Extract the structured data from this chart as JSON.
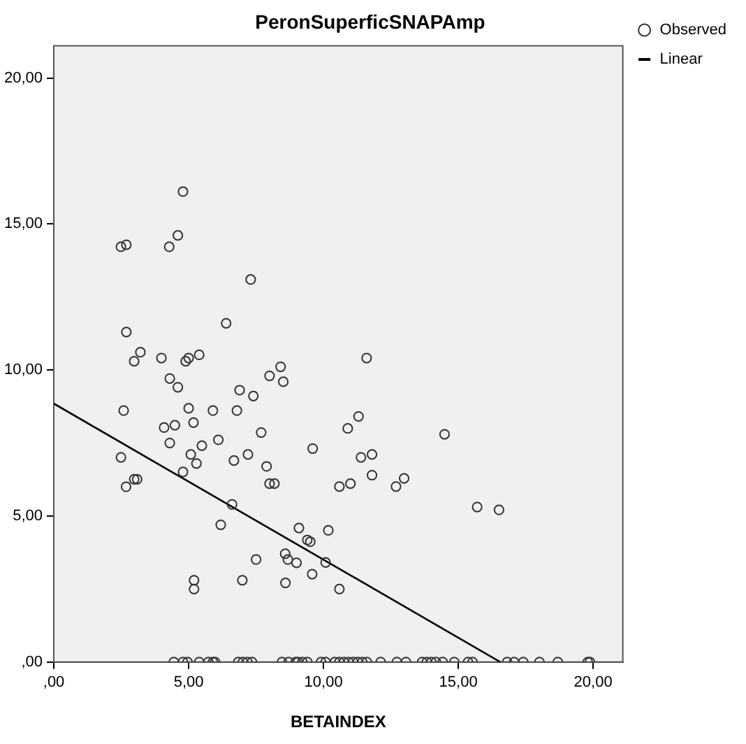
{
  "chart_data": {
    "type": "scatter",
    "title": "PeronSuperficSNAPAmp",
    "xlabel": "BETAINDEX",
    "xlim": [
      0,
      21.1
    ],
    "ylim": [
      0,
      21.1
    ],
    "xticks": [
      {
        "value": 0,
        "label": ",00"
      },
      {
        "value": 5,
        "label": "5,00"
      },
      {
        "value": 10,
        "label": "10,00"
      },
      {
        "value": 15,
        "label": "15,00"
      },
      {
        "value": 20,
        "label": "20,00"
      }
    ],
    "yticks": [
      {
        "value": 0,
        "label": ",00"
      },
      {
        "value": 5,
        "label": "5,00"
      },
      {
        "value": 10,
        "label": "10,00"
      },
      {
        "value": 15,
        "label": "15,00"
      },
      {
        "value": 20,
        "label": "20,00"
      }
    ],
    "grid": false,
    "legend": "top right",
    "series": [
      {
        "name": "Observed",
        "marker": "circle",
        "color": "#333333",
        "x": [
          4.79,
          2.49,
          2.69,
          4.6,
          4.28,
          7.3,
          6.39,
          2.69,
          3.21,
          2.98,
          3.99,
          4.89,
          5.0,
          5.39,
          8.41,
          8.0,
          8.51,
          4.3,
          4.6,
          6.89,
          7.4,
          2.59,
          5.0,
          5.9,
          6.79,
          4.09,
          4.49,
          5.18,
          7.69,
          9.6,
          4.3,
          5.49,
          6.1,
          5.08,
          5.29,
          6.68,
          7.2,
          7.89,
          8.0,
          8.18,
          2.49,
          2.68,
          2.98,
          3.09,
          4.79,
          6.61,
          6.19,
          9.09,
          9.4,
          9.51,
          8.58,
          8.68,
          9.0,
          7.5,
          9.58,
          6.99,
          8.59,
          5.2,
          5.2,
          11.6,
          11.3,
          10.9,
          14.49,
          11.39,
          11.8,
          11.8,
          10.59,
          11.0,
          12.69,
          12.99,
          15.7,
          16.51,
          10.18,
          10.08,
          10.59,
          4.45,
          4.79,
          4.96,
          5.39,
          5.73,
          5.9,
          5.98,
          6.84,
          7.01,
          7.18,
          7.35,
          8.46,
          8.71,
          8.97,
          9.05,
          9.22,
          9.4,
          9.91,
          10.08,
          10.42,
          10.59,
          10.76,
          10.93,
          11.1,
          11.27,
          11.44,
          11.61,
          12.12,
          12.72,
          13.06,
          13.66,
          13.83,
          14.0,
          14.17,
          14.42,
          14.85,
          15.36,
          15.53,
          16.81,
          17.07,
          17.41,
          18.01,
          18.69,
          19.8,
          19.88
        ],
        "values": [
          16.11,
          14.22,
          14.29,
          14.61,
          14.22,
          13.1,
          11.6,
          11.3,
          10.61,
          10.3,
          10.41,
          10.3,
          10.41,
          10.52,
          10.11,
          9.8,
          9.6,
          9.71,
          9.41,
          9.31,
          9.11,
          8.61,
          8.69,
          8.61,
          8.61,
          8.03,
          8.11,
          8.2,
          7.86,
          7.31,
          7.5,
          7.41,
          7.61,
          7.11,
          6.8,
          6.9,
          7.11,
          6.7,
          6.11,
          6.11,
          7.01,
          6.0,
          6.26,
          6.26,
          6.51,
          5.4,
          4.7,
          4.59,
          4.18,
          4.12,
          3.71,
          3.51,
          3.4,
          3.51,
          3.01,
          2.8,
          2.71,
          2.8,
          2.5,
          10.41,
          8.41,
          8.0,
          7.8,
          7.01,
          7.11,
          6.4,
          6.01,
          6.11,
          6.01,
          6.29,
          5.31,
          5.21,
          4.51,
          3.41,
          2.5,
          0,
          0,
          0,
          0,
          0,
          0,
          0,
          0,
          0,
          0,
          0,
          0,
          0,
          0,
          0,
          0,
          0,
          0,
          0,
          0,
          0,
          0,
          0,
          0,
          0,
          0,
          0,
          0,
          0,
          0,
          0,
          0,
          0,
          0,
          0,
          0,
          0,
          0,
          0,
          0,
          0,
          0,
          0,
          0,
          0
        ]
      },
      {
        "name": "Linear",
        "type": "line",
        "marker": "none",
        "color": "#000000",
        "x": [
          0,
          16.56
        ],
        "values": [
          8.85,
          0
        ]
      }
    ]
  }
}
